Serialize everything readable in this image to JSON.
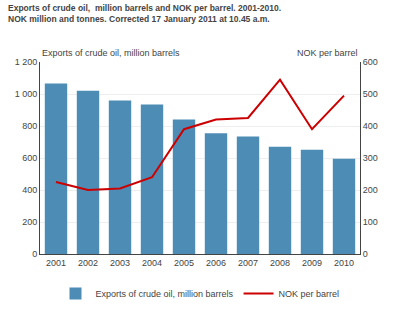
{
  "chart_data": {
    "type": "bar",
    "title": "Exports of crude oil,  million barrels and NOK per barrel. 2001-2010.",
    "subtitle": "NOK million and tonnes. Corrected 17 January 2011 at 10.45 a.m.",
    "ylabel": "Exports of crude oil, million barrels",
    "y2label": "NOK per barrel",
    "categories": [
      "2001",
      "2002",
      "2003",
      "2004",
      "2005",
      "2006",
      "2007",
      "2008",
      "2009",
      "2010"
    ],
    "series": [
      {
        "name": "Exports of crude oil, million barrels",
        "type": "bar",
        "color": "#4d8db5",
        "values": [
          1065,
          1020,
          960,
          935,
          840,
          755,
          735,
          670,
          652,
          595
        ]
      },
      {
        "name": "NOK per barrel",
        "type": "line",
        "axis": "y2",
        "color": "#cc0000",
        "values": [
          225,
          200,
          205,
          240,
          390,
          420,
          425,
          545,
          390,
          495
        ]
      }
    ],
    "ylim": [
      0,
      1200
    ],
    "yticks": [
      0,
      200,
      400,
      600,
      800,
      {
        "value": 1000,
        "label": "1 000"
      },
      {
        "value": 1200,
        "label": "1 200"
      }
    ],
    "y2lim": [
      0,
      600
    ],
    "y2ticks": [
      0,
      100,
      200,
      300,
      400,
      500,
      600
    ],
    "grid": true,
    "legend": "bottom"
  }
}
